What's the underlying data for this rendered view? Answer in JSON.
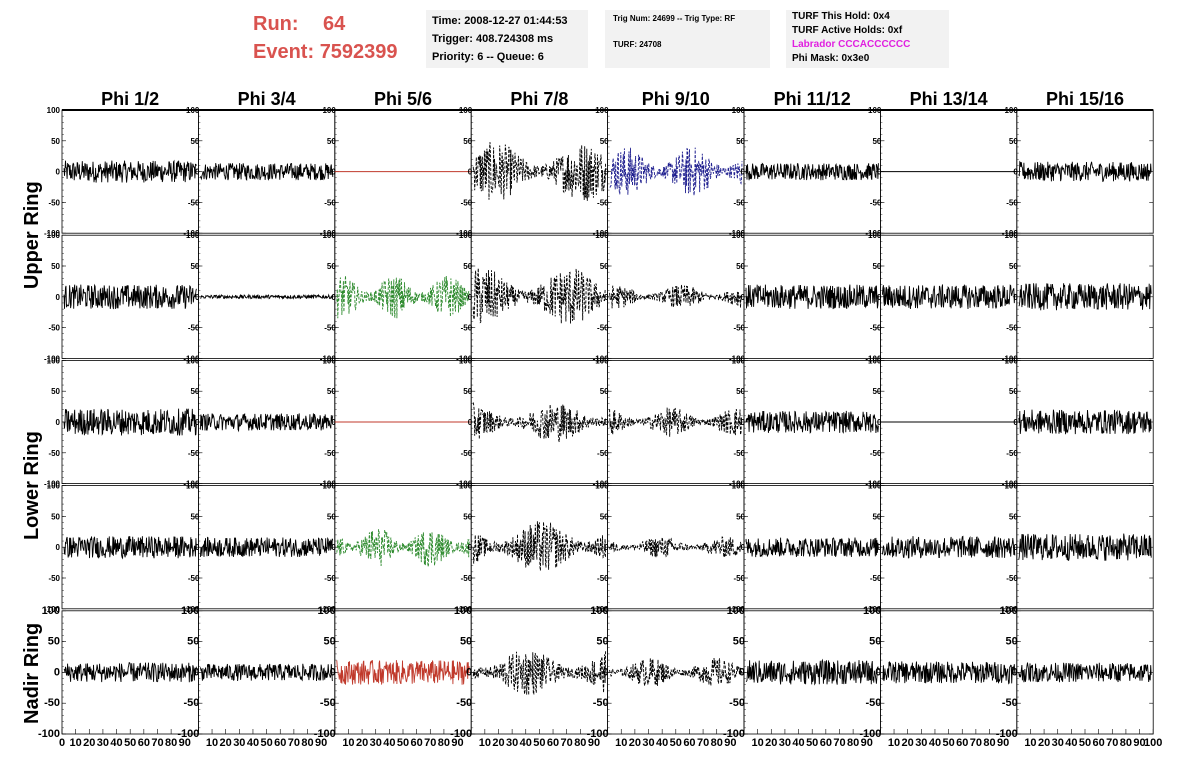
{
  "header": {
    "run_label": "Run:",
    "run_value": "64",
    "event_label": "Event:",
    "event_value": "7592399",
    "time_line": "Time: 2008-12-27 01:44:53",
    "trigger_line": "Trigger: 408.724308 ms",
    "priority_line": "Priority: 6 -- Queue: 6",
    "trig_line": "Trig Num: 24699 -- Trig Type: RF",
    "turf_line": "TURF: 24708",
    "turf_hold": "TURF This Hold: 0x4",
    "turf_active": "TURF Active Holds: 0xf",
    "labrador": "Labrador CCCACCCCCC",
    "phi_mask": "Phi Mask: 0x3e0"
  },
  "colors": {
    "run_text": "#d9534f",
    "labrador_text": "#e020e0",
    "trace_black": "#000000",
    "trace_red": "#c0392b",
    "trace_green": "#2e8b2e",
    "trace_blue": "#1f1f8f",
    "pane_bg": "#f2f2f2"
  },
  "chart_data": {
    "type": "line",
    "title": "",
    "columns": [
      "Phi 1/2",
      "Phi 3/4",
      "Phi 5/6",
      "Phi 7/8",
      "Phi 9/10",
      "Phi 11/12",
      "Phi 13/14",
      "Phi 15/16"
    ],
    "ring_labels": [
      "Upper Ring",
      "Lower Ring",
      "Nadir Ring"
    ],
    "ring_row_spans": [
      2,
      2,
      1
    ],
    "xlim": [
      0,
      100
    ],
    "ylim": [
      -100,
      100
    ],
    "x_ticks": [
      "0",
      "10",
      "20",
      "30",
      "40",
      "50",
      "60",
      "70",
      "80",
      "90",
      "100"
    ],
    "y_ticks": [
      "100",
      "50",
      "0",
      "-50",
      "-100"
    ],
    "panels": [
      [
        {
          "color": "black",
          "style": "solid",
          "amplitude": 18
        },
        {
          "color": "black",
          "style": "solid",
          "amplitude": 14
        },
        {
          "color": "red",
          "style": "solid",
          "amplitude": 0
        },
        {
          "color": "black",
          "style": "dashed",
          "amplitude": 45
        },
        {
          "color": "blue",
          "style": "dashed",
          "amplitude": 38
        },
        {
          "color": "black",
          "style": "solid",
          "amplitude": 14
        },
        {
          "color": "black",
          "style": "solid",
          "amplitude": 0
        },
        {
          "color": "black",
          "style": "solid",
          "amplitude": 16
        }
      ],
      [
        {
          "color": "black",
          "style": "solid",
          "amplitude": 20
        },
        {
          "color": "black",
          "style": "solid",
          "amplitude": 3
        },
        {
          "color": "green",
          "style": "dashed",
          "amplitude": 33
        },
        {
          "color": "black",
          "style": "dashed",
          "amplitude": 45
        },
        {
          "color": "black",
          "style": "dashed",
          "amplitude": 18
        },
        {
          "color": "black",
          "style": "solid",
          "amplitude": 20
        },
        {
          "color": "black",
          "style": "solid",
          "amplitude": 20
        },
        {
          "color": "black",
          "style": "solid",
          "amplitude": 22
        }
      ],
      [
        {
          "color": "black",
          "style": "solid",
          "amplitude": 22
        },
        {
          "color": "black",
          "style": "solid",
          "amplitude": 14
        },
        {
          "color": "red",
          "style": "solid",
          "amplitude": 0
        },
        {
          "color": "black",
          "style": "dashed",
          "amplitude": 30
        },
        {
          "color": "black",
          "style": "dashed",
          "amplitude": 22
        },
        {
          "color": "black",
          "style": "solid",
          "amplitude": 18
        },
        {
          "color": "black",
          "style": "solid",
          "amplitude": 0
        },
        {
          "color": "black",
          "style": "solid",
          "amplitude": 20
        }
      ],
      [
        {
          "color": "black",
          "style": "solid",
          "amplitude": 18
        },
        {
          "color": "black",
          "style": "solid",
          "amplitude": 16
        },
        {
          "color": "green",
          "style": "dashed",
          "amplitude": 30
        },
        {
          "color": "black",
          "style": "dashed",
          "amplitude": 40
        },
        {
          "color": "black",
          "style": "dashed",
          "amplitude": 16
        },
        {
          "color": "black",
          "style": "solid",
          "amplitude": 16
        },
        {
          "color": "black",
          "style": "solid",
          "amplitude": 18
        },
        {
          "color": "black",
          "style": "solid",
          "amplitude": 22
        }
      ],
      [
        {
          "color": "black",
          "style": "solid",
          "amplitude": 16
        },
        {
          "color": "black",
          "style": "solid",
          "amplitude": 14
        },
        {
          "color": "red",
          "style": "solid",
          "amplitude": 20
        },
        {
          "color": "black",
          "style": "dashed",
          "amplitude": 35
        },
        {
          "color": "black",
          "style": "dashed",
          "amplitude": 22
        },
        {
          "color": "black",
          "style": "solid",
          "amplitude": 20
        },
        {
          "color": "black",
          "style": "solid",
          "amplitude": 18
        },
        {
          "color": "black",
          "style": "solid",
          "amplitude": 16
        }
      ]
    ]
  }
}
